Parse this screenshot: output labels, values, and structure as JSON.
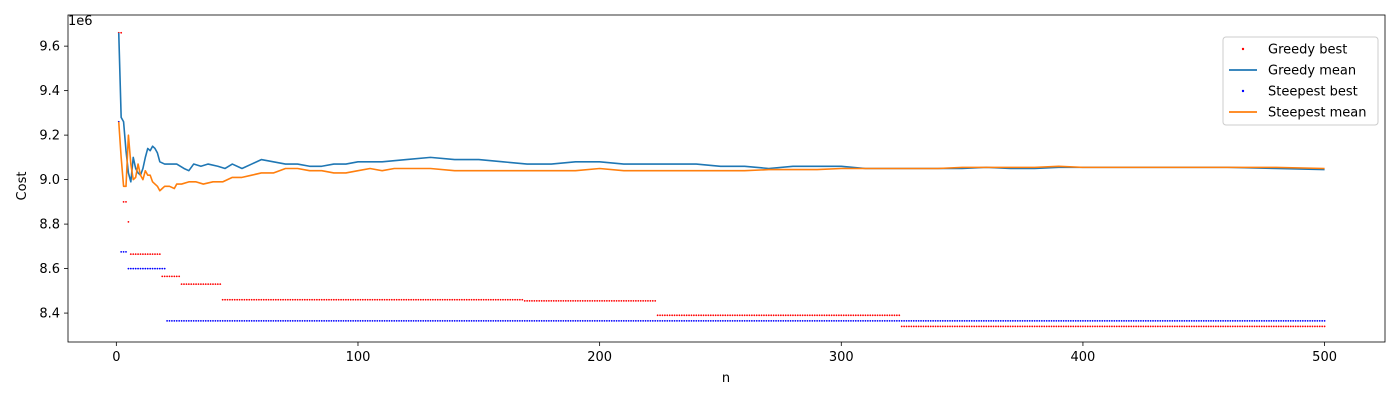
{
  "chart_data": {
    "type": "line",
    "title": "",
    "xlabel": "n",
    "ylabel": "Cost",
    "y_offset_label": "1e6",
    "xlim": [
      -20,
      525
    ],
    "ylim": [
      8.27,
      9.74
    ],
    "x_ticks": [
      0,
      100,
      200,
      300,
      400,
      500
    ],
    "x_tick_labels": [
      "0",
      "100",
      "200",
      "300",
      "400",
      "500"
    ],
    "y_ticks": [
      8.4,
      8.6,
      8.8,
      9.0,
      9.2,
      9.4,
      9.6
    ],
    "y_tick_labels": [
      "8.4",
      "8.6",
      "8.8",
      "9.0",
      "9.2",
      "9.4",
      "9.6"
    ],
    "grid": false,
    "legend_position": "top-right",
    "series": [
      {
        "name": "Greedy best",
        "kind": "points",
        "color": "#ff0000",
        "steps": [
          [
            1,
            2,
            9.66
          ],
          [
            3,
            4,
            8.9
          ],
          [
            5,
            5,
            8.81
          ],
          [
            6,
            18,
            8.665
          ],
          [
            19,
            26,
            8.565
          ],
          [
            27,
            43,
            8.53
          ],
          [
            44,
            168,
            8.46
          ],
          [
            169,
            223,
            8.455
          ],
          [
            224,
            324,
            8.39
          ],
          [
            325,
            500,
            8.34
          ]
        ]
      },
      {
        "name": "Greedy mean",
        "kind": "line",
        "color": "#1f77b4",
        "points": [
          [
            1,
            9.66
          ],
          [
            2,
            9.28
          ],
          [
            3,
            9.26
          ],
          [
            4,
            9.13
          ],
          [
            5,
            9.03
          ],
          [
            6,
            8.99
          ],
          [
            7,
            9.1
          ],
          [
            8,
            9.05
          ],
          [
            9,
            9.03
          ],
          [
            10,
            9.02
          ],
          [
            11,
            9.05
          ],
          [
            12,
            9.1
          ],
          [
            13,
            9.14
          ],
          [
            14,
            9.13
          ],
          [
            15,
            9.15
          ],
          [
            16,
            9.14
          ],
          [
            17,
            9.12
          ],
          [
            18,
            9.08
          ],
          [
            20,
            9.07
          ],
          [
            25,
            9.07
          ],
          [
            28,
            9.05
          ],
          [
            30,
            9.04
          ],
          [
            32,
            9.07
          ],
          [
            35,
            9.06
          ],
          [
            38,
            9.07
          ],
          [
            42,
            9.06
          ],
          [
            45,
            9.05
          ],
          [
            48,
            9.07
          ],
          [
            52,
            9.05
          ],
          [
            56,
            9.07
          ],
          [
            60,
            9.09
          ],
          [
            65,
            9.08
          ],
          [
            70,
            9.07
          ],
          [
            75,
            9.07
          ],
          [
            80,
            9.06
          ],
          [
            85,
            9.06
          ],
          [
            90,
            9.07
          ],
          [
            95,
            9.07
          ],
          [
            100,
            9.08
          ],
          [
            110,
            9.08
          ],
          [
            120,
            9.09
          ],
          [
            130,
            9.1
          ],
          [
            140,
            9.09
          ],
          [
            150,
            9.09
          ],
          [
            160,
            9.08
          ],
          [
            170,
            9.07
          ],
          [
            180,
            9.07
          ],
          [
            190,
            9.08
          ],
          [
            200,
            9.08
          ],
          [
            210,
            9.07
          ],
          [
            220,
            9.07
          ],
          [
            230,
            9.07
          ],
          [
            240,
            9.07
          ],
          [
            250,
            9.06
          ],
          [
            260,
            9.06
          ],
          [
            270,
            9.05
          ],
          [
            280,
            9.06
          ],
          [
            290,
            9.06
          ],
          [
            300,
            9.06
          ],
          [
            310,
            9.05
          ],
          [
            320,
            9.05
          ],
          [
            330,
            9.05
          ],
          [
            340,
            9.05
          ],
          [
            350,
            9.05
          ],
          [
            360,
            9.055
          ],
          [
            370,
            9.05
          ],
          [
            380,
            9.05
          ],
          [
            390,
            9.055
          ],
          [
            400,
            9.055
          ],
          [
            420,
            9.055
          ],
          [
            440,
            9.055
          ],
          [
            460,
            9.055
          ],
          [
            480,
            9.05
          ],
          [
            500,
            9.045
          ]
        ]
      },
      {
        "name": "Steepest best",
        "kind": "points",
        "color": "#0000ff",
        "steps": [
          [
            1,
            1,
            9.26
          ],
          [
            2,
            4,
            8.675
          ],
          [
            5,
            20,
            8.6
          ],
          [
            21,
            500,
            8.365
          ]
        ]
      },
      {
        "name": "Steepest mean",
        "kind": "line",
        "color": "#ff7f0e",
        "points": [
          [
            1,
            9.26
          ],
          [
            2,
            9.1
          ],
          [
            3,
            8.97
          ],
          [
            4,
            8.97
          ],
          [
            5,
            9.2
          ],
          [
            6,
            9.07
          ],
          [
            7,
            9.0
          ],
          [
            8,
            9.01
          ],
          [
            9,
            9.07
          ],
          [
            10,
            9.02
          ],
          [
            11,
            9.0
          ],
          [
            12,
            9.04
          ],
          [
            13,
            9.02
          ],
          [
            14,
            9.02
          ],
          [
            15,
            8.99
          ],
          [
            16,
            8.98
          ],
          [
            17,
            8.97
          ],
          [
            18,
            8.95
          ],
          [
            19,
            8.96
          ],
          [
            20,
            8.97
          ],
          [
            22,
            8.97
          ],
          [
            24,
            8.96
          ],
          [
            25,
            8.98
          ],
          [
            27,
            8.98
          ],
          [
            30,
            8.99
          ],
          [
            33,
            8.99
          ],
          [
            36,
            8.98
          ],
          [
            40,
            8.99
          ],
          [
            44,
            8.99
          ],
          [
            48,
            9.01
          ],
          [
            52,
            9.01
          ],
          [
            56,
            9.02
          ],
          [
            60,
            9.03
          ],
          [
            65,
            9.03
          ],
          [
            70,
            9.05
          ],
          [
            75,
            9.05
          ],
          [
            80,
            9.04
          ],
          [
            85,
            9.04
          ],
          [
            90,
            9.03
          ],
          [
            95,
            9.03
          ],
          [
            100,
            9.04
          ],
          [
            105,
            9.05
          ],
          [
            110,
            9.04
          ],
          [
            115,
            9.05
          ],
          [
            120,
            9.05
          ],
          [
            130,
            9.05
          ],
          [
            140,
            9.04
          ],
          [
            150,
            9.04
          ],
          [
            160,
            9.04
          ],
          [
            170,
            9.04
          ],
          [
            180,
            9.04
          ],
          [
            190,
            9.04
          ],
          [
            200,
            9.05
          ],
          [
            210,
            9.04
          ],
          [
            220,
            9.04
          ],
          [
            230,
            9.04
          ],
          [
            240,
            9.04
          ],
          [
            250,
            9.04
          ],
          [
            260,
            9.04
          ],
          [
            270,
            9.045
          ],
          [
            280,
            9.045
          ],
          [
            290,
            9.045
          ],
          [
            300,
            9.05
          ],
          [
            310,
            9.05
          ],
          [
            320,
            9.05
          ],
          [
            330,
            9.05
          ],
          [
            340,
            9.05
          ],
          [
            350,
            9.055
          ],
          [
            360,
            9.055
          ],
          [
            370,
            9.055
          ],
          [
            380,
            9.055
          ],
          [
            390,
            9.06
          ],
          [
            400,
            9.055
          ],
          [
            420,
            9.055
          ],
          [
            440,
            9.055
          ],
          [
            460,
            9.055
          ],
          [
            480,
            9.055
          ],
          [
            500,
            9.05
          ]
        ]
      }
    ]
  }
}
